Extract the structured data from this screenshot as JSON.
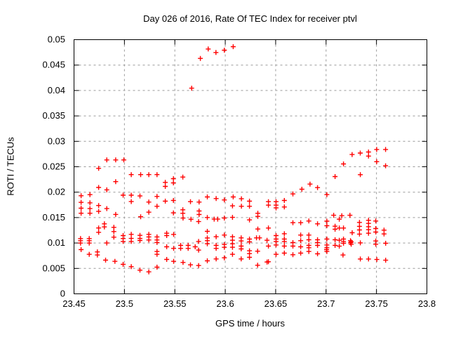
{
  "chart_data": {
    "type": "scatter",
    "title": "Day 026 of 2016, Rate Of TEC Index for receiver ptvl",
    "xlabel": "GPS time / hours",
    "ylabel": "ROTI / TECUs",
    "xlim": [
      23.45,
      23.8
    ],
    "ylim": [
      0,
      0.05
    ],
    "xticks": [
      23.45,
      23.5,
      23.55,
      23.6,
      23.65,
      23.7,
      23.75,
      23.8
    ],
    "xtick_labels": [
      "23.45",
      "23.5",
      "23.55",
      "23.6",
      "23.65",
      "23.7",
      "23.75",
      "23.8"
    ],
    "yticks": [
      0,
      0.005,
      0.01,
      0.015,
      0.02,
      0.025,
      0.03,
      0.035,
      0.04,
      0.045,
      0.05
    ],
    "ytick_labels": [
      "0",
      "0.005",
      "0.01",
      "0.015",
      "0.02",
      "0.025",
      "0.03",
      "0.035",
      "0.04",
      "0.045",
      "0.05"
    ],
    "grid": true,
    "legend": "none",
    "marker": {
      "shape": "plus",
      "color": "#ff0000",
      "size": 7
    },
    "series": [
      {
        "name": "ROTI",
        "points": [
          [
            23.457,
            0.0193
          ],
          [
            23.457,
            0.018
          ],
          [
            23.457,
            0.01685
          ],
          [
            23.457,
            0.01585
          ],
          [
            23.4565,
            0.01087
          ],
          [
            23.4565,
            0.01045
          ],
          [
            23.4565,
            0.00999
          ],
          [
            23.457,
            0.0087
          ],
          [
            23.4658,
            0.0195
          ],
          [
            23.4658,
            0.0179
          ],
          [
            23.4658,
            0.01677
          ],
          [
            23.4658,
            0.01585
          ],
          [
            23.4651,
            0.01087
          ],
          [
            23.4651,
            0.01045
          ],
          [
            23.4651,
            0.00999
          ],
          [
            23.4651,
            0.00778
          ],
          [
            23.4744,
            0.02468
          ],
          [
            23.4744,
            0.02092
          ],
          [
            23.4744,
            0.01737
          ],
          [
            23.4744,
            0.01622
          ],
          [
            23.4744,
            0.01295
          ],
          [
            23.4744,
            0.0121
          ],
          [
            23.4732,
            0.00824
          ],
          [
            23.4732,
            0.00764
          ],
          [
            23.4825,
            0.02634
          ],
          [
            23.4825,
            0.02046
          ],
          [
            23.4825,
            0.01677
          ],
          [
            23.4801,
            0.01377
          ],
          [
            23.4801,
            0.01316
          ],
          [
            23.4825,
            0.01
          ],
          [
            23.4813,
            0.00663
          ],
          [
            23.4913,
            0.02634
          ],
          [
            23.4913,
            0.02207
          ],
          [
            23.4913,
            0.01562
          ],
          [
            23.4895,
            0.01308
          ],
          [
            23.4895,
            0.01225
          ],
          [
            23.4895,
            0.01114
          ],
          [
            23.4906,
            0.0064
          ],
          [
            23.4994,
            0.02634
          ],
          [
            23.4987,
            0.0194
          ],
          [
            23.4987,
            0.01146
          ],
          [
            23.4987,
            0.01087
          ],
          [
            23.4987,
            0.01031
          ],
          [
            23.4987,
            0.0058
          ],
          [
            23.5068,
            0.02345
          ],
          [
            23.5068,
            0.0194
          ],
          [
            23.5068,
            0.01815
          ],
          [
            23.5068,
            0.0117
          ],
          [
            23.5068,
            0.0109
          ],
          [
            23.5068,
            0.0103
          ],
          [
            23.5068,
            0.00534
          ],
          [
            23.5161,
            0.02345
          ],
          [
            23.5154,
            0.01926
          ],
          [
            23.5161,
            0.01516
          ],
          [
            23.5154,
            0.0115
          ],
          [
            23.5154,
            0.0109
          ],
          [
            23.5154,
            0.0105
          ],
          [
            23.5154,
            0.00465
          ],
          [
            23.5242,
            0.02345
          ],
          [
            23.5242,
            0.01805
          ],
          [
            23.5242,
            0.01606
          ],
          [
            23.5242,
            0.0117
          ],
          [
            23.5242,
            0.0112
          ],
          [
            23.5242,
            0.0106
          ],
          [
            23.5242,
            0.00432
          ],
          [
            23.5323,
            0.02345
          ],
          [
            23.5323,
            0.01916
          ],
          [
            23.5323,
            0.01722
          ],
          [
            23.5323,
            0.0112
          ],
          [
            23.5323,
            0.0106
          ],
          [
            23.5323,
            0.0101
          ],
          [
            23.5323,
            0.00833
          ],
          [
            23.5323,
            0.00778
          ],
          [
            23.5323,
            0.00525
          ],
          [
            23.5405,
            0.02192
          ],
          [
            23.5405,
            0.02113
          ],
          [
            23.5405,
            0.01823
          ],
          [
            23.5419,
            0.01192
          ],
          [
            23.5419,
            0.01146
          ],
          [
            23.5419,
            0.00925
          ],
          [
            23.5419,
            0.00677
          ],
          [
            23.5486,
            0.02265
          ],
          [
            23.5486,
            0.02182
          ],
          [
            23.5486,
            0.01837
          ],
          [
            23.5486,
            0.01593
          ],
          [
            23.5488,
            0.01169
          ],
          [
            23.5488,
            0.00894
          ],
          [
            23.5488,
            0.0064
          ],
          [
            23.5579,
            0.02297
          ],
          [
            23.5579,
            0.01653
          ],
          [
            23.5579,
            0.01584
          ],
          [
            23.5581,
            0.0149
          ],
          [
            23.5558,
            0.00953
          ],
          [
            23.5558,
            0.00894
          ],
          [
            23.5581,
            0.00617
          ],
          [
            23.5667,
            0.04046
          ],
          [
            23.5655,
            0.01814
          ],
          [
            23.566,
            0.01467
          ],
          [
            23.5632,
            0.00953
          ],
          [
            23.5632,
            0.00894
          ],
          [
            23.5655,
            0.0057
          ],
          [
            23.5753,
            0.04631
          ],
          [
            23.5741,
            0.01805
          ],
          [
            23.5741,
            0.0163
          ],
          [
            23.5741,
            0.01561
          ],
          [
            23.5736,
            0.01421
          ],
          [
            23.5736,
            0.01031
          ],
          [
            23.5702,
            0.00925
          ],
          [
            23.5736,
            0.0086
          ],
          [
            23.5736,
            0.00557
          ],
          [
            23.5831,
            0.04816
          ],
          [
            23.5822,
            0.01906
          ],
          [
            23.5822,
            0.01501
          ],
          [
            23.5822,
            0.01229
          ],
          [
            23.5822,
            0.011
          ],
          [
            23.5822,
            0.01045
          ],
          [
            23.5822,
            0.00985
          ],
          [
            23.5822,
            0.00649
          ],
          [
            23.5908,
            0.04747
          ],
          [
            23.591,
            0.01874
          ],
          [
            23.589,
            0.0147
          ],
          [
            23.5925,
            0.0147
          ],
          [
            23.591,
            0.01123
          ],
          [
            23.591,
            0.00953
          ],
          [
            23.591,
            0.00894
          ],
          [
            23.591,
            0.00686
          ],
          [
            23.5991,
            0.04793
          ],
          [
            23.5991,
            0.01846
          ],
          [
            23.5991,
            0.0149
          ],
          [
            23.5991,
            0.01156
          ],
          [
            23.5991,
            0.00971
          ],
          [
            23.5991,
            0.00916
          ],
          [
            23.5991,
            0.00708
          ],
          [
            23.6079,
            0.04862
          ],
          [
            23.6079,
            0.01906
          ],
          [
            23.6072,
            0.01731
          ],
          [
            23.6072,
            0.01504
          ],
          [
            23.6072,
            0.01123
          ],
          [
            23.6072,
            0.01054
          ],
          [
            23.6072,
            0.00985
          ],
          [
            23.6072,
            0.00916
          ],
          [
            23.6072,
            0.00778
          ],
          [
            23.616,
            0.0187
          ],
          [
            23.616,
            0.01722
          ],
          [
            23.6158,
            0.01101
          ],
          [
            23.6158,
            0.0104
          ],
          [
            23.6158,
            0.00939
          ],
          [
            23.6158,
            0.00884
          ],
          [
            23.6158,
            0.00686
          ],
          [
            23.624,
            0.01823
          ],
          [
            23.624,
            0.01722
          ],
          [
            23.624,
            0.01455
          ],
          [
            23.624,
            0.01077
          ],
          [
            23.624,
            0.01022
          ],
          [
            23.624,
            0.00847
          ],
          [
            23.624,
            0.00792
          ],
          [
            23.624,
            0.00718
          ],
          [
            23.6323,
            0.01584
          ],
          [
            23.6323,
            0.01524
          ],
          [
            23.6323,
            0.01275
          ],
          [
            23.631,
            0.01101
          ],
          [
            23.634,
            0.01101
          ],
          [
            23.6321,
            0.00838
          ],
          [
            23.6321,
            0.00562
          ],
          [
            23.6414,
            0.01054
          ],
          [
            23.6414,
            0.00626
          ],
          [
            23.6428,
            0.01814
          ],
          [
            23.6428,
            0.01745
          ],
          [
            23.6428,
            0.01294
          ],
          [
            23.6428,
            0.00939
          ],
          [
            23.6428,
            0.00631
          ],
          [
            23.6504,
            0.01814
          ],
          [
            23.6504,
            0.01745
          ],
          [
            23.6504,
            0.0169
          ],
          [
            23.6504,
            0.01146
          ],
          [
            23.6504,
            0.01077
          ],
          [
            23.6504,
            0.01031
          ],
          [
            23.6504,
            0.00962
          ],
          [
            23.6504,
            0.00778
          ],
          [
            23.6586,
            0.01837
          ],
          [
            23.6586,
            0.01708
          ],
          [
            23.6586,
            0.01183
          ],
          [
            23.6586,
            0.01077
          ],
          [
            23.6586,
            0.01031
          ],
          [
            23.6586,
            0.00939
          ],
          [
            23.6586,
            0.00801
          ],
          [
            23.6671,
            0.01966
          ],
          [
            23.6671,
            0.01399
          ],
          [
            23.6671,
            0.01008
          ],
          [
            23.6671,
            0.00939
          ],
          [
            23.6671,
            0.00769
          ],
          [
            23.676,
            0.02058
          ],
          [
            23.6748,
            0.01399
          ],
          [
            23.6748,
            0.01156
          ],
          [
            23.6748,
            0.01045
          ],
          [
            23.6748,
            0.00925
          ],
          [
            23.6748,
            0.00801
          ],
          [
            23.6841,
            0.02159
          ],
          [
            23.6829,
            0.01432
          ],
          [
            23.6829,
            0.01156
          ],
          [
            23.6829,
            0.01064
          ],
          [
            23.6829,
            0.00953
          ],
          [
            23.6829,
            0.00907
          ],
          [
            23.6829,
            0.00833
          ],
          [
            23.6915,
            0.0209
          ],
          [
            23.6915,
            0.01377
          ],
          [
            23.6915,
            0.01064
          ],
          [
            23.6915,
            0.01008
          ],
          [
            23.6915,
            0.00953
          ],
          [
            23.6915,
            0.00787
          ],
          [
            23.7008,
            0.01952
          ],
          [
            23.7008,
            0.0143
          ],
          [
            23.7008,
            0.0134
          ],
          [
            23.7008,
            0.01077
          ],
          [
            23.7008,
            0.00962
          ],
          [
            23.7008,
            0.00907
          ],
          [
            23.7008,
            0.00833
          ],
          [
            23.7005,
            0.0087
          ],
          [
            23.7089,
            0.02307
          ],
          [
            23.7075,
            0.01546
          ],
          [
            23.7089,
            0.0133
          ],
          [
            23.7089,
            0.01271
          ],
          [
            23.7089,
            0.01064
          ],
          [
            23.7089,
            0.00953
          ],
          [
            23.7131,
            0.01468
          ],
          [
            23.7131,
            0.01294
          ],
          [
            23.7131,
            0.01054
          ],
          [
            23.7131,
            0.00938
          ],
          [
            23.7173,
            0.02555
          ],
          [
            23.7156,
            0.01537
          ],
          [
            23.7173,
            0.01294
          ],
          [
            23.7173,
            0.01078
          ],
          [
            23.7173,
            0.01031
          ],
          [
            23.7173,
            0.00994
          ],
          [
            23.7168,
            0.00764
          ],
          [
            23.7258,
            0.0274
          ],
          [
            23.7237,
            0.01546
          ],
          [
            23.7259,
            0.01202
          ],
          [
            23.7242,
            0.01045
          ],
          [
            23.7242,
            0.01003
          ],
          [
            23.7249,
            0.01022
          ],
          [
            23.7249,
            0.00975
          ],
          [
            23.7339,
            0.0277
          ],
          [
            23.734,
            0.02344
          ],
          [
            23.7331,
            0.01405
          ],
          [
            23.7331,
            0.01327
          ],
          [
            23.7331,
            0.01257
          ],
          [
            23.7331,
            0.01175
          ],
          [
            23.734,
            0.01003
          ],
          [
            23.734,
            0.00685
          ],
          [
            23.7421,
            0.0279
          ],
          [
            23.7421,
            0.0271
          ],
          [
            23.7421,
            0.01446
          ],
          [
            23.7421,
            0.01386
          ],
          [
            23.7421,
            0.01321
          ],
          [
            23.7421,
            0.01262
          ],
          [
            23.7421,
            0.01192
          ],
          [
            23.7421,
            0.00685
          ],
          [
            23.7502,
            0.0284
          ],
          [
            23.7502,
            0.026
          ],
          [
            23.7493,
            0.01432
          ],
          [
            23.7493,
            0.01285
          ],
          [
            23.7493,
            0.01216
          ],
          [
            23.7493,
            0.0104
          ],
          [
            23.7493,
            0.00975
          ],
          [
            23.7503,
            0.00676
          ],
          [
            23.759,
            0.0284
          ],
          [
            23.759,
            0.0252
          ],
          [
            23.7575,
            0.01253
          ],
          [
            23.7575,
            0.01178
          ],
          [
            23.7591,
            0.00994
          ],
          [
            23.7591,
            0.00662
          ]
        ]
      }
    ],
    "colors": {
      "marker": "#ff0000",
      "grid": "#9a9a9a",
      "axis": "#000000",
      "background": "#ffffff"
    }
  }
}
